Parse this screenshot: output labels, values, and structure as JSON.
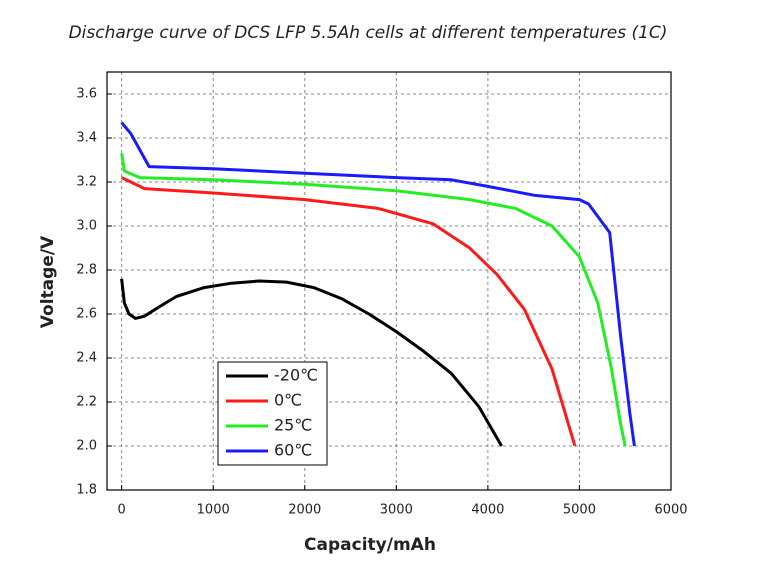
{
  "chart_data": {
    "type": "line",
    "title": "Discharge curve of DCS LFP 5.5Ah cells at different temperatures (1C)",
    "x_label": "Capacity/mAh",
    "y_label": "Voltage/V",
    "xlim": [
      -160,
      6000
    ],
    "ylim": [
      1.8,
      3.7
    ],
    "xticks": [
      0,
      1000,
      2000,
      3000,
      4000,
      5000,
      6000
    ],
    "yticks": [
      1.8,
      {
        "value": 2,
        "label": "2.0"
      },
      2.2,
      2.4,
      2.6,
      2.8,
      {
        "value": 3,
        "label": "3.0"
      },
      3.2,
      3.4,
      3.6
    ],
    "grid": true,
    "legend": "lower left",
    "series": [
      {
        "name": "-20℃",
        "color": "#000000",
        "x": [
          0,
          30,
          80,
          150,
          250,
          400,
          600,
          900,
          1200,
          1500,
          1800,
          2100,
          2400,
          2700,
          3000,
          3300,
          3600,
          3900,
          4150
        ],
        "values": [
          2.76,
          2.65,
          2.6,
          2.58,
          2.59,
          2.63,
          2.68,
          2.72,
          2.74,
          2.75,
          2.745,
          2.72,
          2.67,
          2.6,
          2.52,
          2.43,
          2.33,
          2.18,
          2.0
        ]
      },
      {
        "name": "0℃",
        "color": "#ff1a1a",
        "x": [
          0,
          50,
          250,
          1000,
          2000,
          2800,
          3400,
          3800,
          4100,
          4400,
          4700,
          4950
        ],
        "values": [
          3.22,
          3.21,
          3.17,
          3.15,
          3.12,
          3.08,
          3.01,
          2.9,
          2.78,
          2.62,
          2.35,
          2.0
        ]
      },
      {
        "name": "25℃",
        "color": "#22ee22",
        "x": [
          0,
          30,
          200,
          1000,
          2000,
          3000,
          3800,
          4300,
          4700,
          5000,
          5200,
          5350,
          5450,
          5500
        ],
        "values": [
          3.33,
          3.25,
          3.22,
          3.21,
          3.19,
          3.16,
          3.12,
          3.08,
          3.0,
          2.86,
          2.65,
          2.35,
          2.1,
          2.0
        ]
      },
      {
        "name": "60℃",
        "color": "#1a1aff",
        "x": [
          0,
          100,
          300,
          1000,
          2000,
          3000,
          3600,
          4000,
          4500,
          5000,
          5100,
          5330,
          5450,
          5550,
          5600
        ],
        "values": [
          3.47,
          3.42,
          3.27,
          3.26,
          3.24,
          3.22,
          3.21,
          3.18,
          3.14,
          3.12,
          3.1,
          2.97,
          2.5,
          2.15,
          2.0
        ]
      }
    ]
  }
}
